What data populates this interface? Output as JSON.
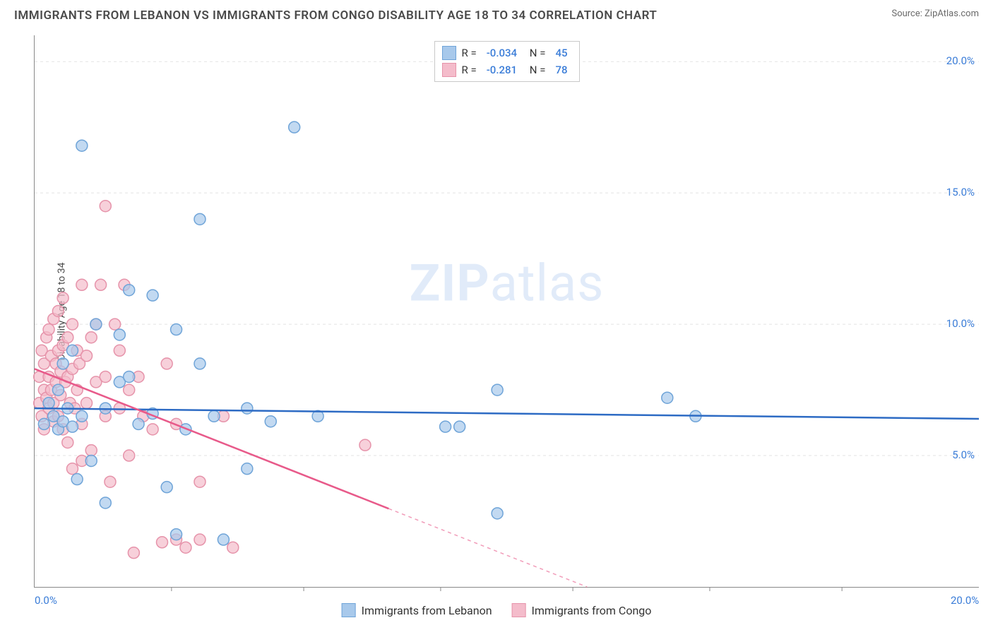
{
  "header": {
    "title": "IMMIGRANTS FROM LEBANON VS IMMIGRANTS FROM CONGO DISABILITY AGE 18 TO 34 CORRELATION CHART",
    "source_prefix": "Source: ",
    "source_name": "ZipAtlas.com"
  },
  "watermark": {
    "part1": "ZIP",
    "part2": "atlas"
  },
  "chart": {
    "type": "scatter",
    "ylabel": "Disability Age 18 to 34",
    "xlim": [
      0,
      20
    ],
    "ylim": [
      0,
      21
    ],
    "yticks": [
      5,
      10,
      15,
      20
    ],
    "ytick_labels": [
      "5.0%",
      "10.0%",
      "15.0%",
      "20.0%"
    ],
    "xticks": [
      0,
      20
    ],
    "xtick_labels": [
      "0.0%",
      "20.0%"
    ],
    "minor_xtick_positions": [
      2.9,
      5.7,
      8.6,
      11.4,
      14.3,
      17.1
    ],
    "background_color": "#ffffff",
    "grid_color": "#e3e3e3",
    "series": [
      {
        "name": "Immigrants from Lebanon",
        "color_fill": "#a8c9eb",
        "color_stroke": "#6fa4d8",
        "trend_color": "#2d6bc4",
        "marker_radius": 8,
        "R": "-0.034",
        "N": "45",
        "trend": {
          "x1": 0,
          "y1": 6.8,
          "x2": 20,
          "y2": 6.4,
          "solid_until_x": 20
        },
        "points": [
          [
            0.2,
            6.2
          ],
          [
            0.3,
            7.0
          ],
          [
            0.4,
            6.5
          ],
          [
            0.5,
            6.0
          ],
          [
            0.5,
            7.5
          ],
          [
            0.6,
            6.3
          ],
          [
            0.6,
            8.5
          ],
          [
            0.7,
            6.8
          ],
          [
            0.8,
            6.1
          ],
          [
            0.8,
            9.0
          ],
          [
            0.9,
            4.1
          ],
          [
            1.0,
            6.5
          ],
          [
            1.0,
            16.8
          ],
          [
            1.2,
            4.8
          ],
          [
            1.3,
            10.0
          ],
          [
            1.5,
            6.8
          ],
          [
            1.5,
            3.2
          ],
          [
            1.8,
            7.8
          ],
          [
            1.8,
            9.6
          ],
          [
            2.0,
            8.0
          ],
          [
            2.0,
            11.3
          ],
          [
            2.2,
            6.2
          ],
          [
            2.5,
            6.6
          ],
          [
            2.5,
            11.1
          ],
          [
            2.8,
            3.8
          ],
          [
            3.0,
            9.8
          ],
          [
            3.0,
            2.0
          ],
          [
            3.2,
            6.0
          ],
          [
            3.5,
            8.5
          ],
          [
            3.5,
            14.0
          ],
          [
            3.8,
            6.5
          ],
          [
            4.0,
            1.8
          ],
          [
            4.5,
            6.8
          ],
          [
            4.5,
            4.5
          ],
          [
            5.0,
            6.3
          ],
          [
            5.5,
            17.5
          ],
          [
            6.0,
            6.5
          ],
          [
            8.7,
            6.1
          ],
          [
            9.0,
            6.1
          ],
          [
            9.8,
            7.5
          ],
          [
            9.8,
            2.8
          ],
          [
            13.4,
            7.2
          ],
          [
            14.0,
            6.5
          ]
        ]
      },
      {
        "name": "Immigrants from Congo",
        "color_fill": "#f4bccb",
        "color_stroke": "#e693aa",
        "trend_color": "#e85a8a",
        "marker_radius": 8,
        "R": "-0.281",
        "N": "78",
        "trend": {
          "x1": 0,
          "y1": 8.3,
          "x2": 11.7,
          "y2": 0,
          "solid_until_x": 7.5
        },
        "points": [
          [
            0.1,
            7.0
          ],
          [
            0.1,
            8.0
          ],
          [
            0.15,
            6.5
          ],
          [
            0.15,
            9.0
          ],
          [
            0.2,
            7.5
          ],
          [
            0.2,
            8.5
          ],
          [
            0.2,
            6.0
          ],
          [
            0.25,
            9.5
          ],
          [
            0.25,
            7.2
          ],
          [
            0.3,
            8.0
          ],
          [
            0.3,
            6.8
          ],
          [
            0.3,
            9.8
          ],
          [
            0.35,
            7.5
          ],
          [
            0.35,
            8.8
          ],
          [
            0.4,
            7.0
          ],
          [
            0.4,
            10.2
          ],
          [
            0.4,
            6.3
          ],
          [
            0.45,
            8.5
          ],
          [
            0.45,
            7.8
          ],
          [
            0.5,
            9.0
          ],
          [
            0.5,
            6.5
          ],
          [
            0.5,
            10.5
          ],
          [
            0.55,
            7.3
          ],
          [
            0.55,
            8.2
          ],
          [
            0.6,
            9.2
          ],
          [
            0.6,
            6.0
          ],
          [
            0.6,
            11.0
          ],
          [
            0.65,
            7.8
          ],
          [
            0.7,
            8.0
          ],
          [
            0.7,
            9.5
          ],
          [
            0.7,
            5.5
          ],
          [
            0.75,
            7.0
          ],
          [
            0.8,
            8.3
          ],
          [
            0.8,
            10.0
          ],
          [
            0.8,
            4.5
          ],
          [
            0.85,
            6.8
          ],
          [
            0.9,
            9.0
          ],
          [
            0.9,
            7.5
          ],
          [
            0.95,
            8.5
          ],
          [
            1.0,
            6.2
          ],
          [
            1.0,
            11.5
          ],
          [
            1.0,
            4.8
          ],
          [
            1.1,
            8.8
          ],
          [
            1.1,
            7.0
          ],
          [
            1.2,
            9.5
          ],
          [
            1.2,
            5.2
          ],
          [
            1.3,
            7.8
          ],
          [
            1.3,
            10.0
          ],
          [
            1.4,
            11.5
          ],
          [
            1.5,
            6.5
          ],
          [
            1.5,
            8.0
          ],
          [
            1.5,
            14.5
          ],
          [
            1.6,
            4.0
          ],
          [
            1.7,
            10.0
          ],
          [
            1.8,
            6.8
          ],
          [
            1.8,
            9.0
          ],
          [
            1.9,
            11.5
          ],
          [
            2.0,
            7.5
          ],
          [
            2.0,
            5.0
          ],
          [
            2.1,
            1.3
          ],
          [
            2.2,
            8.0
          ],
          [
            2.3,
            6.5
          ],
          [
            2.5,
            6.0
          ],
          [
            2.7,
            1.7
          ],
          [
            2.8,
            8.5
          ],
          [
            3.0,
            6.2
          ],
          [
            3.0,
            1.8
          ],
          [
            3.2,
            1.5
          ],
          [
            3.5,
            4.0
          ],
          [
            3.5,
            1.8
          ],
          [
            4.0,
            6.5
          ],
          [
            4.2,
            1.5
          ],
          [
            7.0,
            5.4
          ]
        ]
      }
    ]
  },
  "legend": {
    "series1_label": "Immigrants from Lebanon",
    "series2_label": "Immigrants from Congo"
  }
}
